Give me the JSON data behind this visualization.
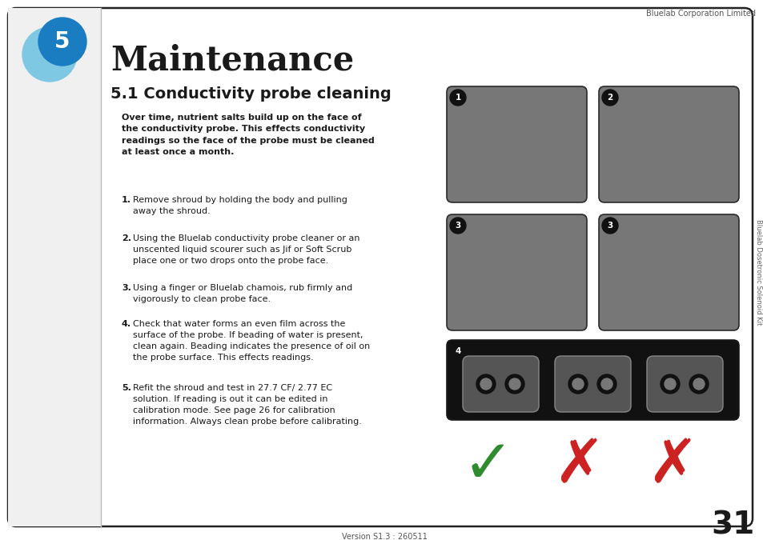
{
  "page_title": "Maintenance",
  "section_title": "5.1 Conductivity probe cleaning",
  "section_number": "5",
  "header_text": "Bluelab Corporation Limited",
  "footer_text": "Version S1.3 : 260511",
  "side_text": "Bluelab Dosetronic Solenoid Kit",
  "page_number": "31",
  "bold_paragraph": "Over time, nutrient salts build up on the face of\nthe conductivity probe. This effects conductivity\nreadings so the face of the probe must be cleaned\nat least once a month.",
  "steps": [
    "Remove shroud by holding the body and pulling\naway the shroud.",
    "Using the Bluelab conductivity probe cleaner or an\nunscented liquid scourer such as Jif or Soft Scrub\nplace one or two drops onto the probe face.",
    "Using a finger or Bluelab chamois, rub firmly and\nvigorously to clean probe face.",
    "Check that water forms an even film across the\nsurface of the probe. If beading of water is present,\nclean again. Beading indicates the presence of oil on\nthe probe surface. This effects readings.",
    "Refit the shroud and test in 27.7 CF/ 2.77 EC\nsolution. If reading is out it can be edited in\ncalibration mode. See page 26 for calibration\ninformation. Always clean probe before calibrating."
  ],
  "bg_color": "#ffffff",
  "border_color": "#1a1a1a",
  "title_color": "#1a1a1a",
  "text_color": "#1a1a1a",
  "blue_dark": "#1a7cc1",
  "blue_light": "#7ec8e3",
  "green_check": "#2e8b2e",
  "red_cross": "#cc2222",
  "img_bg": "#777777",
  "img4_bg": "#111111"
}
